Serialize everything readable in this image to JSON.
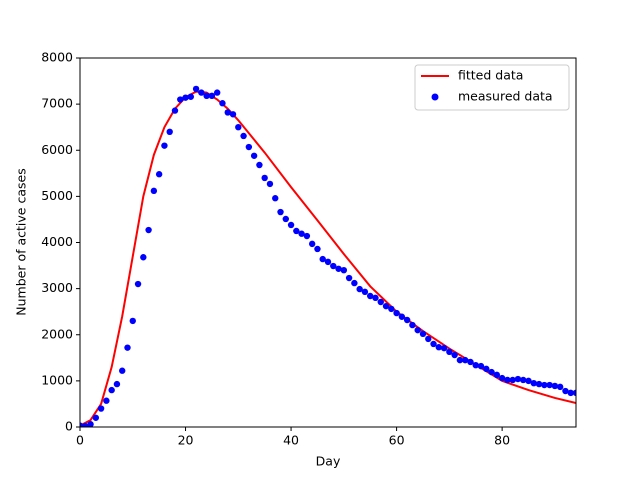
{
  "chart_data": {
    "type": "line",
    "x_label": "Day",
    "y_label": "Number of active cases",
    "xlim": [
      0,
      94
    ],
    "ylim": [
      0,
      8000
    ],
    "xticks": [
      0,
      20,
      40,
      60,
      80
    ],
    "yticks": [
      0,
      1000,
      2000,
      3000,
      4000,
      5000,
      6000,
      7000,
      8000
    ],
    "grid": false,
    "legend": "upper right",
    "series": [
      {
        "name": "fitted data",
        "style": "line",
        "color": "#ff0000",
        "x": [
          0,
          2,
          4,
          6,
          8,
          10,
          12,
          14,
          16,
          18,
          20,
          22,
          24,
          26,
          28,
          30,
          35,
          40,
          45,
          50,
          55,
          60,
          65,
          70,
          75,
          80,
          85,
          90,
          94
        ],
        "values": [
          30,
          150,
          500,
          1300,
          2400,
          3700,
          5000,
          5900,
          6500,
          6900,
          7150,
          7270,
          7250,
          7100,
          6900,
          6650,
          5950,
          5200,
          4480,
          3750,
          3050,
          2500,
          2080,
          1700,
          1350,
          1000,
          800,
          630,
          520
        ]
      },
      {
        "name": "measured data",
        "style": "scatter",
        "color": "#0000ff",
        "x": [
          0,
          1,
          2,
          3,
          4,
          5,
          6,
          7,
          8,
          9,
          10,
          11,
          12,
          13,
          14,
          15,
          16,
          17,
          18,
          19,
          20,
          21,
          22,
          23,
          24,
          25,
          26,
          27,
          28,
          29,
          30,
          31,
          32,
          33,
          34,
          35,
          36,
          37,
          38,
          39,
          40,
          41,
          42,
          43,
          44,
          45,
          46,
          47,
          48,
          49,
          50,
          51,
          52,
          53,
          54,
          55,
          56,
          57,
          58,
          59,
          60,
          61,
          62,
          63,
          64,
          65,
          66,
          67,
          68,
          69,
          70,
          71,
          72,
          73,
          74,
          75,
          76,
          77,
          78,
          79,
          80,
          81,
          82,
          83,
          84,
          85,
          86,
          87,
          88,
          89,
          90,
          91,
          92,
          93,
          94
        ],
        "values": [
          30,
          20,
          60,
          200,
          400,
          570,
          800,
          930,
          1220,
          1720,
          2300,
          3100,
          3680,
          4270,
          5120,
          5480,
          6100,
          6400,
          6860,
          7100,
          7140,
          7160,
          7330,
          7250,
          7180,
          7180,
          7250,
          7020,
          6820,
          6780,
          6500,
          6310,
          6070,
          5880,
          5680,
          5400,
          5270,
          4960,
          4660,
          4510,
          4380,
          4250,
          4190,
          4140,
          3970,
          3860,
          3640,
          3580,
          3490,
          3430,
          3400,
          3230,
          3120,
          2990,
          2930,
          2840,
          2800,
          2710,
          2620,
          2560,
          2470,
          2390,
          2320,
          2210,
          2100,
          2020,
          1910,
          1800,
          1730,
          1710,
          1630,
          1560,
          1450,
          1450,
          1410,
          1340,
          1320,
          1260,
          1190,
          1130,
          1060,
          1020,
          1020,
          1040,
          1020,
          1000,
          950,
          930,
          910,
          910,
          890,
          870,
          780,
          740,
          740
        ]
      }
    ]
  }
}
